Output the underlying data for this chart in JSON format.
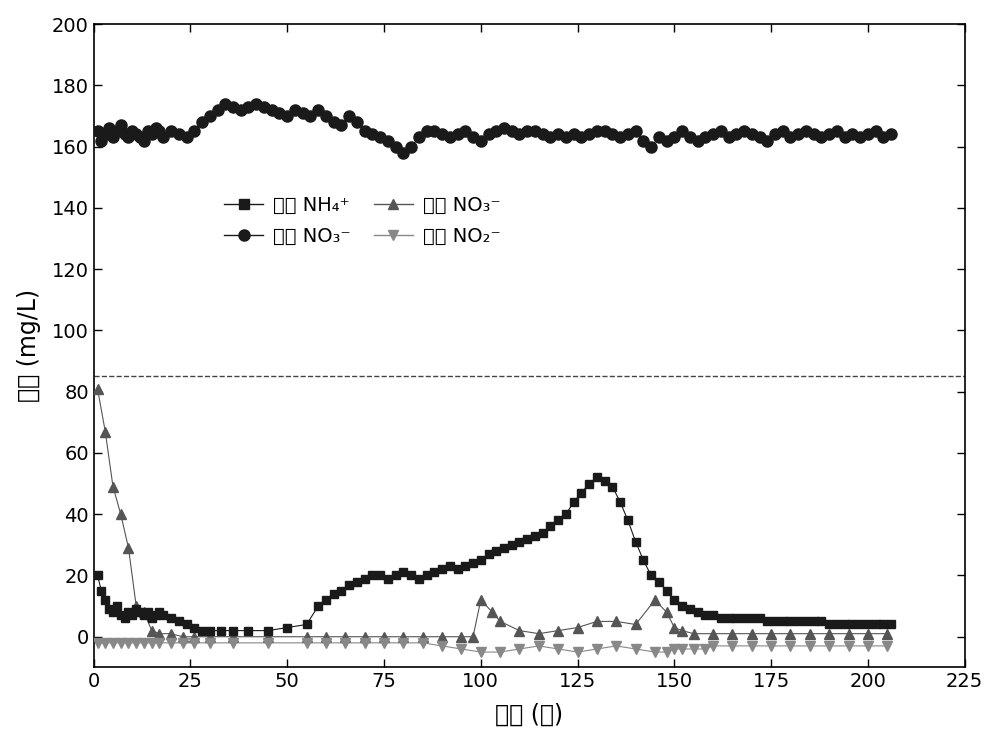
{
  "title": "",
  "xlabel": "时间 (天)",
  "ylabel": "浓度 (mg/L)",
  "xlim": [
    0,
    225
  ],
  "ylim": [
    -10,
    200
  ],
  "yticks": [
    0,
    20,
    40,
    60,
    80,
    100,
    120,
    140,
    160,
    180,
    200
  ],
  "xticks": [
    0,
    25,
    50,
    75,
    100,
    125,
    150,
    175,
    200,
    225
  ],
  "dashed_line_y": 85,
  "legend": {
    "series1": "出水 NH₄⁺",
    "series2": "进水 NO₃⁻",
    "series3": "出水 NO₃⁻",
    "series4": "出水 NO₂⁻"
  },
  "NO3_in_x": [
    1,
    2,
    3,
    4,
    5,
    6,
    7,
    8,
    9,
    10,
    11,
    12,
    13,
    14,
    15,
    16,
    17,
    18,
    20,
    22,
    24,
    26,
    28,
    30,
    32,
    34,
    36,
    38,
    40,
    42,
    44,
    46,
    48,
    50,
    52,
    54,
    56,
    58,
    60,
    62,
    64,
    66,
    68,
    70,
    72,
    74,
    76,
    78,
    80,
    82,
    84,
    86,
    88,
    90,
    92,
    94,
    96,
    98,
    100,
    102,
    104,
    106,
    108,
    110,
    112,
    114,
    116,
    118,
    120,
    122,
    124,
    126,
    128,
    130,
    132,
    134,
    136,
    138,
    140,
    142,
    144,
    146,
    148,
    150,
    152,
    154,
    156,
    158,
    160,
    162,
    164,
    166,
    168,
    170,
    172,
    174,
    176,
    178,
    180,
    182,
    184,
    186,
    188,
    190,
    192,
    194,
    196,
    198,
    200,
    202,
    204,
    206
  ],
  "NO3_in_y": [
    165,
    162,
    164,
    166,
    163,
    165,
    167,
    164,
    163,
    165,
    164,
    163,
    162,
    165,
    164,
    166,
    165,
    163,
    165,
    164,
    163,
    165,
    168,
    170,
    172,
    174,
    173,
    172,
    173,
    174,
    173,
    172,
    171,
    170,
    172,
    171,
    170,
    172,
    170,
    168,
    167,
    170,
    168,
    165,
    164,
    163,
    162,
    160,
    158,
    160,
    163,
    165,
    165,
    164,
    163,
    164,
    165,
    163,
    162,
    164,
    165,
    166,
    165,
    164,
    165,
    165,
    164,
    163,
    164,
    163,
    164,
    163,
    164,
    165,
    165,
    164,
    163,
    164,
    165,
    162,
    160,
    163,
    162,
    163,
    165,
    163,
    162,
    163,
    164,
    165,
    163,
    164,
    165,
    164,
    163,
    162,
    164,
    165,
    163,
    164,
    165,
    164,
    163,
    164,
    165,
    163,
    164,
    163,
    164,
    165,
    163,
    164
  ],
  "NH4_out_x": [
    1,
    2,
    3,
    4,
    5,
    6,
    7,
    8,
    9,
    10,
    11,
    12,
    13,
    14,
    15,
    16,
    17,
    18,
    20,
    22,
    24,
    26,
    28,
    30,
    33,
    36,
    40,
    45,
    50,
    55,
    58,
    60,
    62,
    64,
    66,
    68,
    70,
    72,
    74,
    76,
    78,
    80,
    82,
    84,
    86,
    88,
    90,
    92,
    94,
    96,
    98,
    100,
    102,
    104,
    106,
    108,
    110,
    112,
    114,
    116,
    118,
    120,
    122,
    124,
    126,
    128,
    130,
    132,
    134,
    136,
    138,
    140,
    142,
    144,
    146,
    148,
    150,
    152,
    154,
    156,
    158,
    160,
    162,
    164,
    166,
    168,
    170,
    172,
    174,
    176,
    178,
    180,
    182,
    184,
    186,
    188,
    190,
    192,
    194,
    196,
    198,
    200,
    202,
    204,
    206
  ],
  "NH4_out_y": [
    20,
    15,
    12,
    9,
    8,
    10,
    7,
    6,
    8,
    7,
    9,
    8,
    7,
    8,
    6,
    7,
    8,
    7,
    6,
    5,
    4,
    3,
    2,
    2,
    2,
    2,
    2,
    2,
    3,
    4,
    10,
    12,
    14,
    15,
    17,
    18,
    19,
    20,
    20,
    19,
    20,
    21,
    20,
    19,
    20,
    21,
    22,
    23,
    22,
    23,
    24,
    25,
    27,
    28,
    29,
    30,
    31,
    32,
    33,
    34,
    36,
    38,
    40,
    44,
    47,
    50,
    52,
    51,
    49,
    44,
    38,
    31,
    25,
    20,
    18,
    15,
    12,
    10,
    9,
    8,
    7,
    7,
    6,
    6,
    6,
    6,
    6,
    6,
    5,
    5,
    5,
    5,
    5,
    5,
    5,
    5,
    4,
    4,
    4,
    4,
    4,
    4,
    4,
    4,
    4
  ],
  "NO3_out_x": [
    1,
    3,
    5,
    7,
    9,
    11,
    13,
    15,
    17,
    20,
    23,
    26,
    30,
    36,
    45,
    55,
    60,
    65,
    70,
    75,
    80,
    85,
    90,
    95,
    98,
    100,
    103,
    105,
    110,
    115,
    120,
    125,
    130,
    135,
    140,
    145,
    148,
    150,
    152,
    155,
    160,
    165,
    170,
    175,
    180,
    185,
    190,
    195,
    200,
    205
  ],
  "NO3_out_y": [
    81,
    67,
    49,
    40,
    29,
    10,
    8,
    2,
    1,
    1,
    0,
    0,
    0,
    0,
    0,
    0,
    0,
    0,
    0,
    0,
    0,
    0,
    0,
    0,
    0,
    12,
    8,
    5,
    2,
    1,
    2,
    3,
    5,
    5,
    4,
    12,
    8,
    3,
    2,
    1,
    1,
    1,
    1,
    1,
    1,
    1,
    1,
    1,
    1,
    1
  ],
  "NO2_out_x": [
    1,
    3,
    5,
    7,
    9,
    11,
    13,
    15,
    17,
    20,
    23,
    26,
    30,
    36,
    45,
    55,
    60,
    65,
    70,
    75,
    80,
    85,
    90,
    95,
    100,
    105,
    110,
    115,
    120,
    125,
    130,
    135,
    140,
    145,
    148,
    150,
    152,
    155,
    158,
    160,
    165,
    170,
    175,
    180,
    185,
    190,
    195,
    200,
    205
  ],
  "NO2_out_y": [
    -2,
    -2,
    -2,
    -2,
    -2,
    -2,
    -2,
    -2,
    -2,
    -2,
    -2,
    -2,
    -2,
    -2,
    -2,
    -2,
    -2,
    -2,
    -2,
    -2,
    -2,
    -2,
    -3,
    -4,
    -5,
    -5,
    -4,
    -3,
    -4,
    -5,
    -4,
    -3,
    -4,
    -5,
    -5,
    -4,
    -4,
    -4,
    -4,
    -3,
    -3,
    -3,
    -3,
    -3,
    -3,
    -3,
    -3,
    -3,
    -3
  ],
  "background_color": "#ffffff",
  "marker_size_circle": 8,
  "marker_size_square": 6,
  "marker_size_triangle": 7
}
